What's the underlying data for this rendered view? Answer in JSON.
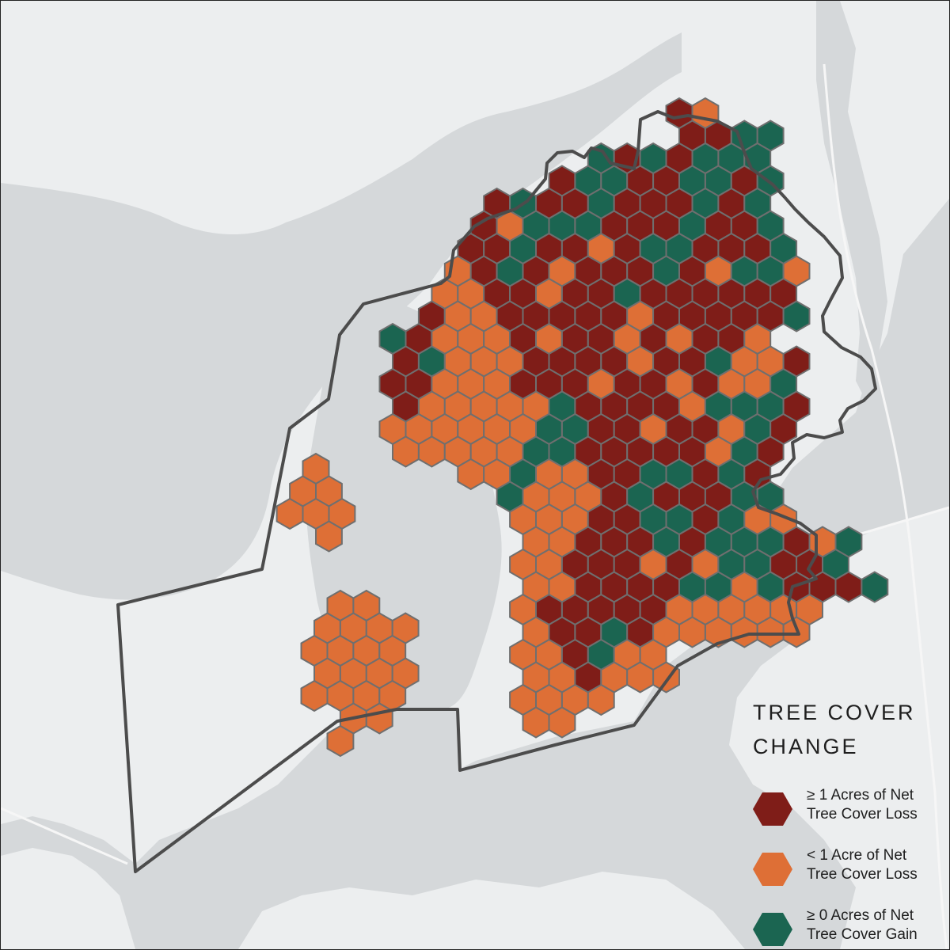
{
  "legend": {
    "title_line1": "TREE COVER",
    "title_line2": "CHANGE",
    "items": [
      {
        "key": "loss-major",
        "line1": "≥ 1 Acres of Net",
        "line2": "Tree Cover Loss",
        "color": "#7f1d18"
      },
      {
        "key": "loss-minor",
        "line1": "< 1 Acre of Net",
        "line2": "Tree Cover Loss",
        "color": "#de6f36"
      },
      {
        "key": "gain",
        "line1": "≥ 0 Acres of Net",
        "line2": "Tree Cover Gain",
        "color": "#1b6551"
      }
    ]
  },
  "colors": {
    "water": "#d5d8da",
    "land": "#eceeef",
    "boundary": "#4c4c4c",
    "hex_stroke": "#6f6f6f"
  }
}
